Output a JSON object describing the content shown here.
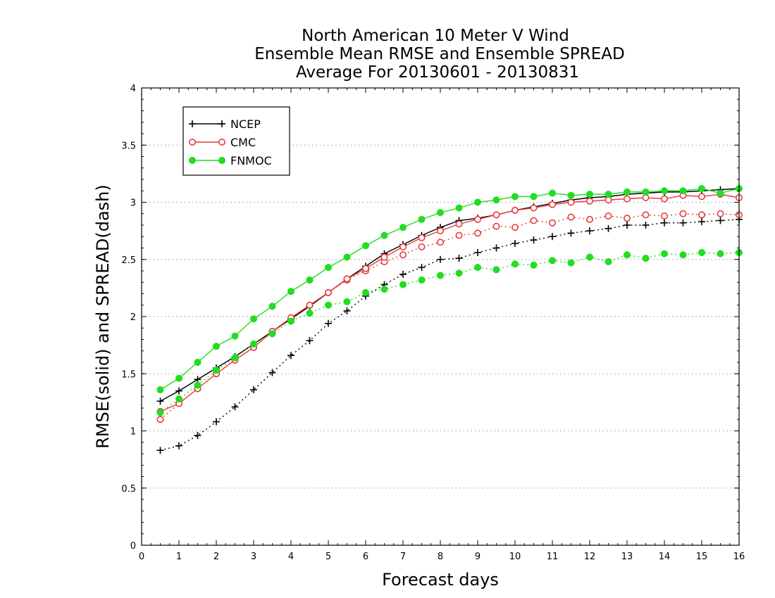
{
  "chart_data": {
    "type": "line",
    "title_lines": [
      "North American 10 Meter V Wind",
      "Ensemble Mean RMSE and Ensemble SPREAD",
      "Average For 20130601 - 20130831"
    ],
    "xlabel": "Forecast days",
    "ylabel": "RMSE(solid) and SPREAD(dash)",
    "xlim": [
      0,
      16
    ],
    "ylim": [
      0,
      4
    ],
    "x_ticks": [
      "0",
      "1",
      "2",
      "3",
      "4",
      "5",
      "6",
      "7",
      "8",
      "9",
      "10",
      "11",
      "12",
      "13",
      "14",
      "15",
      "16"
    ],
    "y_ticks": [
      "0",
      "0.5",
      "1",
      "1.5",
      "2",
      "2.5",
      "3",
      "3.5",
      "4"
    ],
    "grid": "horizontal dotted",
    "legend_placement": "top-left",
    "x": [
      0.5,
      1,
      1.5,
      2,
      2.5,
      3,
      3.5,
      4,
      4.5,
      5,
      5.5,
      6,
      6.5,
      7,
      7.5,
      8,
      8.5,
      9,
      9.5,
      10,
      10.5,
      11,
      11.5,
      12,
      12.5,
      13,
      13.5,
      14,
      14.5,
      15,
      15.5,
      16
    ],
    "series": [
      {
        "name": "NCEP",
        "color": "#000000",
        "marker": "plus",
        "rmse": [
          1.26,
          1.35,
          1.45,
          1.55,
          1.65,
          1.76,
          1.87,
          1.98,
          2.09,
          2.21,
          2.33,
          2.44,
          2.55,
          2.63,
          2.71,
          2.78,
          2.84,
          2.86,
          2.89,
          2.93,
          2.96,
          2.99,
          3.02,
          3.04,
          3.05,
          3.07,
          3.08,
          3.09,
          3.09,
          3.1,
          3.11,
          3.12
        ],
        "spread": [
          0.83,
          0.87,
          0.96,
          1.08,
          1.21,
          1.36,
          1.51,
          1.66,
          1.79,
          1.94,
          2.05,
          2.18,
          2.28,
          2.37,
          2.43,
          2.5,
          2.51,
          2.56,
          2.6,
          2.64,
          2.67,
          2.7,
          2.73,
          2.75,
          2.77,
          2.8,
          2.8,
          2.82,
          2.82,
          2.83,
          2.84,
          2.85
        ]
      },
      {
        "name": "CMC",
        "color": "#e83c3c",
        "marker": "open-circle",
        "rmse": [
          1.17,
          1.24,
          1.37,
          1.5,
          1.62,
          1.73,
          1.87,
          1.99,
          2.1,
          2.21,
          2.33,
          2.42,
          2.52,
          2.61,
          2.69,
          2.75,
          2.81,
          2.85,
          2.89,
          2.93,
          2.95,
          2.98,
          3.0,
          3.01,
          3.02,
          3.03,
          3.04,
          3.03,
          3.06,
          3.05,
          3.07,
          3.04
        ],
        "spread": [
          1.1,
          1.24,
          1.37,
          1.5,
          1.62,
          1.73,
          1.87,
          1.99,
          2.1,
          2.21,
          2.32,
          2.4,
          2.48,
          2.54,
          2.61,
          2.65,
          2.71,
          2.73,
          2.79,
          2.78,
          2.84,
          2.82,
          2.87,
          2.85,
          2.88,
          2.86,
          2.89,
          2.88,
          2.9,
          2.89,
          2.9,
          2.89
        ]
      },
      {
        "name": "FNMOC",
        "color": "#22dd22",
        "marker": "filled-circle",
        "rmse": [
          1.36,
          1.46,
          1.6,
          1.74,
          1.83,
          1.98,
          2.09,
          2.22,
          2.32,
          2.43,
          2.52,
          2.62,
          2.71,
          2.78,
          2.85,
          2.91,
          2.95,
          3.0,
          3.02,
          3.05,
          3.05,
          3.08,
          3.06,
          3.07,
          3.07,
          3.09,
          3.09,
          3.1,
          3.1,
          3.12,
          3.08,
          3.12
        ],
        "spread": [
          1.16,
          1.28,
          1.4,
          1.53,
          1.64,
          1.76,
          1.85,
          1.96,
          2.03,
          2.1,
          2.13,
          2.21,
          2.24,
          2.28,
          2.32,
          2.36,
          2.38,
          2.43,
          2.41,
          2.46,
          2.45,
          2.49,
          2.47,
          2.52,
          2.48,
          2.54,
          2.51,
          2.55,
          2.54,
          2.56,
          2.55,
          2.56
        ]
      }
    ]
  }
}
